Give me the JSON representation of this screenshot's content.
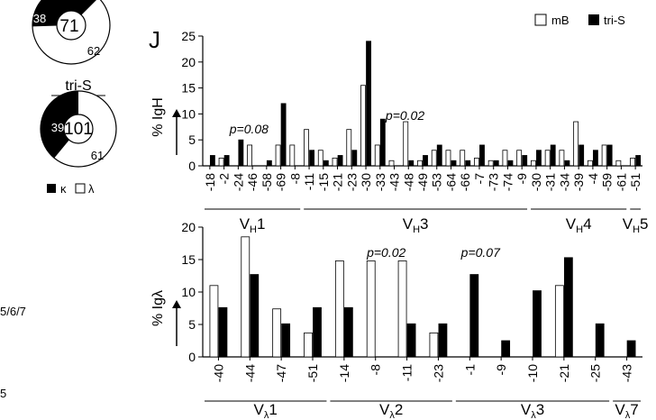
{
  "panel_letter": "J",
  "legend": {
    "mb": "mB",
    "tris": "tri-S",
    "fill_mb": "#ffffff",
    "fill_tris": "#000000"
  },
  "pies": {
    "top": {
      "outer_values": [
        38,
        62
      ],
      "center": "71",
      "label_left": "38",
      "label_right": "62"
    },
    "tris_label": "tri-S",
    "bottom": {
      "outer_values": [
        39,
        61
      ],
      "center": "101",
      "label_left": "39",
      "label_right": "61"
    },
    "legend_kappa": "κ",
    "legend_lambda": "λ"
  },
  "left_fragments": {
    "mid": "5/6/7",
    "bottom": "5"
  },
  "chart_data": [
    {
      "type": "bar",
      "ylabel": "% IgH",
      "ylim": [
        0,
        25
      ],
      "yticks": [
        0,
        5,
        10,
        15,
        20,
        25
      ],
      "categories": [
        "-18",
        "-2",
        "-24",
        "-46",
        "-58",
        "-69",
        "-8",
        "-11",
        "-15",
        "-21",
        "-23",
        "-30",
        "-33",
        "-43",
        "-48",
        "-49",
        "-53",
        "-64",
        "-66",
        "-7",
        "-73",
        "-74",
        "-9",
        "-30",
        "-31",
        "-34",
        "-39",
        "-4",
        "-59",
        "-61",
        "-51"
      ],
      "series": [
        {
          "name": "mB",
          "color": "#ffffff",
          "values": [
            0,
            1.5,
            0,
            4,
            0,
            4,
            4,
            7,
            3,
            1.5,
            7,
            15.5,
            4,
            1,
            8.5,
            1,
            3,
            3,
            3,
            1.5,
            1,
            3,
            3,
            1,
            3,
            3,
            8.5,
            1,
            4,
            1,
            1.5
          ]
        },
        {
          "name": "tri-S",
          "color": "#000000",
          "values": [
            2,
            2,
            5,
            0,
            1,
            12,
            0,
            3,
            1,
            2,
            3,
            24,
            9,
            0,
            1,
            2,
            4,
            1,
            1,
            4,
            1,
            1,
            2,
            3,
            4,
            1,
            4,
            3,
            4,
            0,
            2
          ]
        }
      ],
      "annotations": [
        {
          "text": "p=0.08",
          "near_category": "-24"
        },
        {
          "text": "p=0.02",
          "near_category": "-43"
        }
      ],
      "groups": [
        {
          "label_main": "V",
          "label_sub": "H",
          "label_num": "1",
          "from": "-18",
          "to": "-8"
        },
        {
          "label_main": "V",
          "label_sub": "H",
          "label_num": "3",
          "from": "-11",
          "to": "-9"
        },
        {
          "label_main": "V",
          "label_sub": "H",
          "label_num": "4",
          "from": "-30",
          "to": "-61"
        },
        {
          "label_main": "V",
          "label_sub": "H",
          "label_num": "5",
          "from": "-51",
          "to": "-51"
        }
      ]
    },
    {
      "type": "bar",
      "ylabel": "% Igλ",
      "ylim": [
        0,
        20
      ],
      "yticks": [
        0,
        5,
        10,
        15,
        20
      ],
      "categories": [
        "-40",
        "-44",
        "-47",
        "-51",
        "-14",
        "-8",
        "-11",
        "-23",
        "-1",
        "-9",
        "-10",
        "-21",
        "-25",
        "-43"
      ],
      "series": [
        {
          "name": "mB",
          "color": "#ffffff",
          "values": [
            11,
            18.5,
            7.4,
            3.7,
            14.8,
            14.8,
            14.8,
            3.7,
            0,
            0,
            0,
            11,
            0,
            0
          ]
        },
        {
          "name": "tri-S",
          "color": "#000000",
          "values": [
            7.6,
            12.7,
            5.1,
            7.6,
            7.6,
            0,
            5.1,
            5.1,
            12.7,
            2.5,
            10.2,
            15.3,
            5.1,
            2.5
          ]
        }
      ],
      "annotations": [
        {
          "text": "p=0.02",
          "near_category": "-8"
        },
        {
          "text": "p=0.07",
          "near_category": "-1"
        }
      ],
      "groups": [
        {
          "label_main": "V",
          "label_sub": "λ",
          "label_num": "1",
          "from": "-40",
          "to": "-51"
        },
        {
          "label_main": "V",
          "label_sub": "λ",
          "label_num": "2",
          "from": "-14",
          "to": "-23"
        },
        {
          "label_main": "V",
          "label_sub": "λ",
          "label_num": "3",
          "from": "-1",
          "to": "-25"
        },
        {
          "label_main": "V",
          "label_sub": "λ",
          "label_num": "7",
          "from": "-43",
          "to": "-43"
        }
      ]
    }
  ]
}
